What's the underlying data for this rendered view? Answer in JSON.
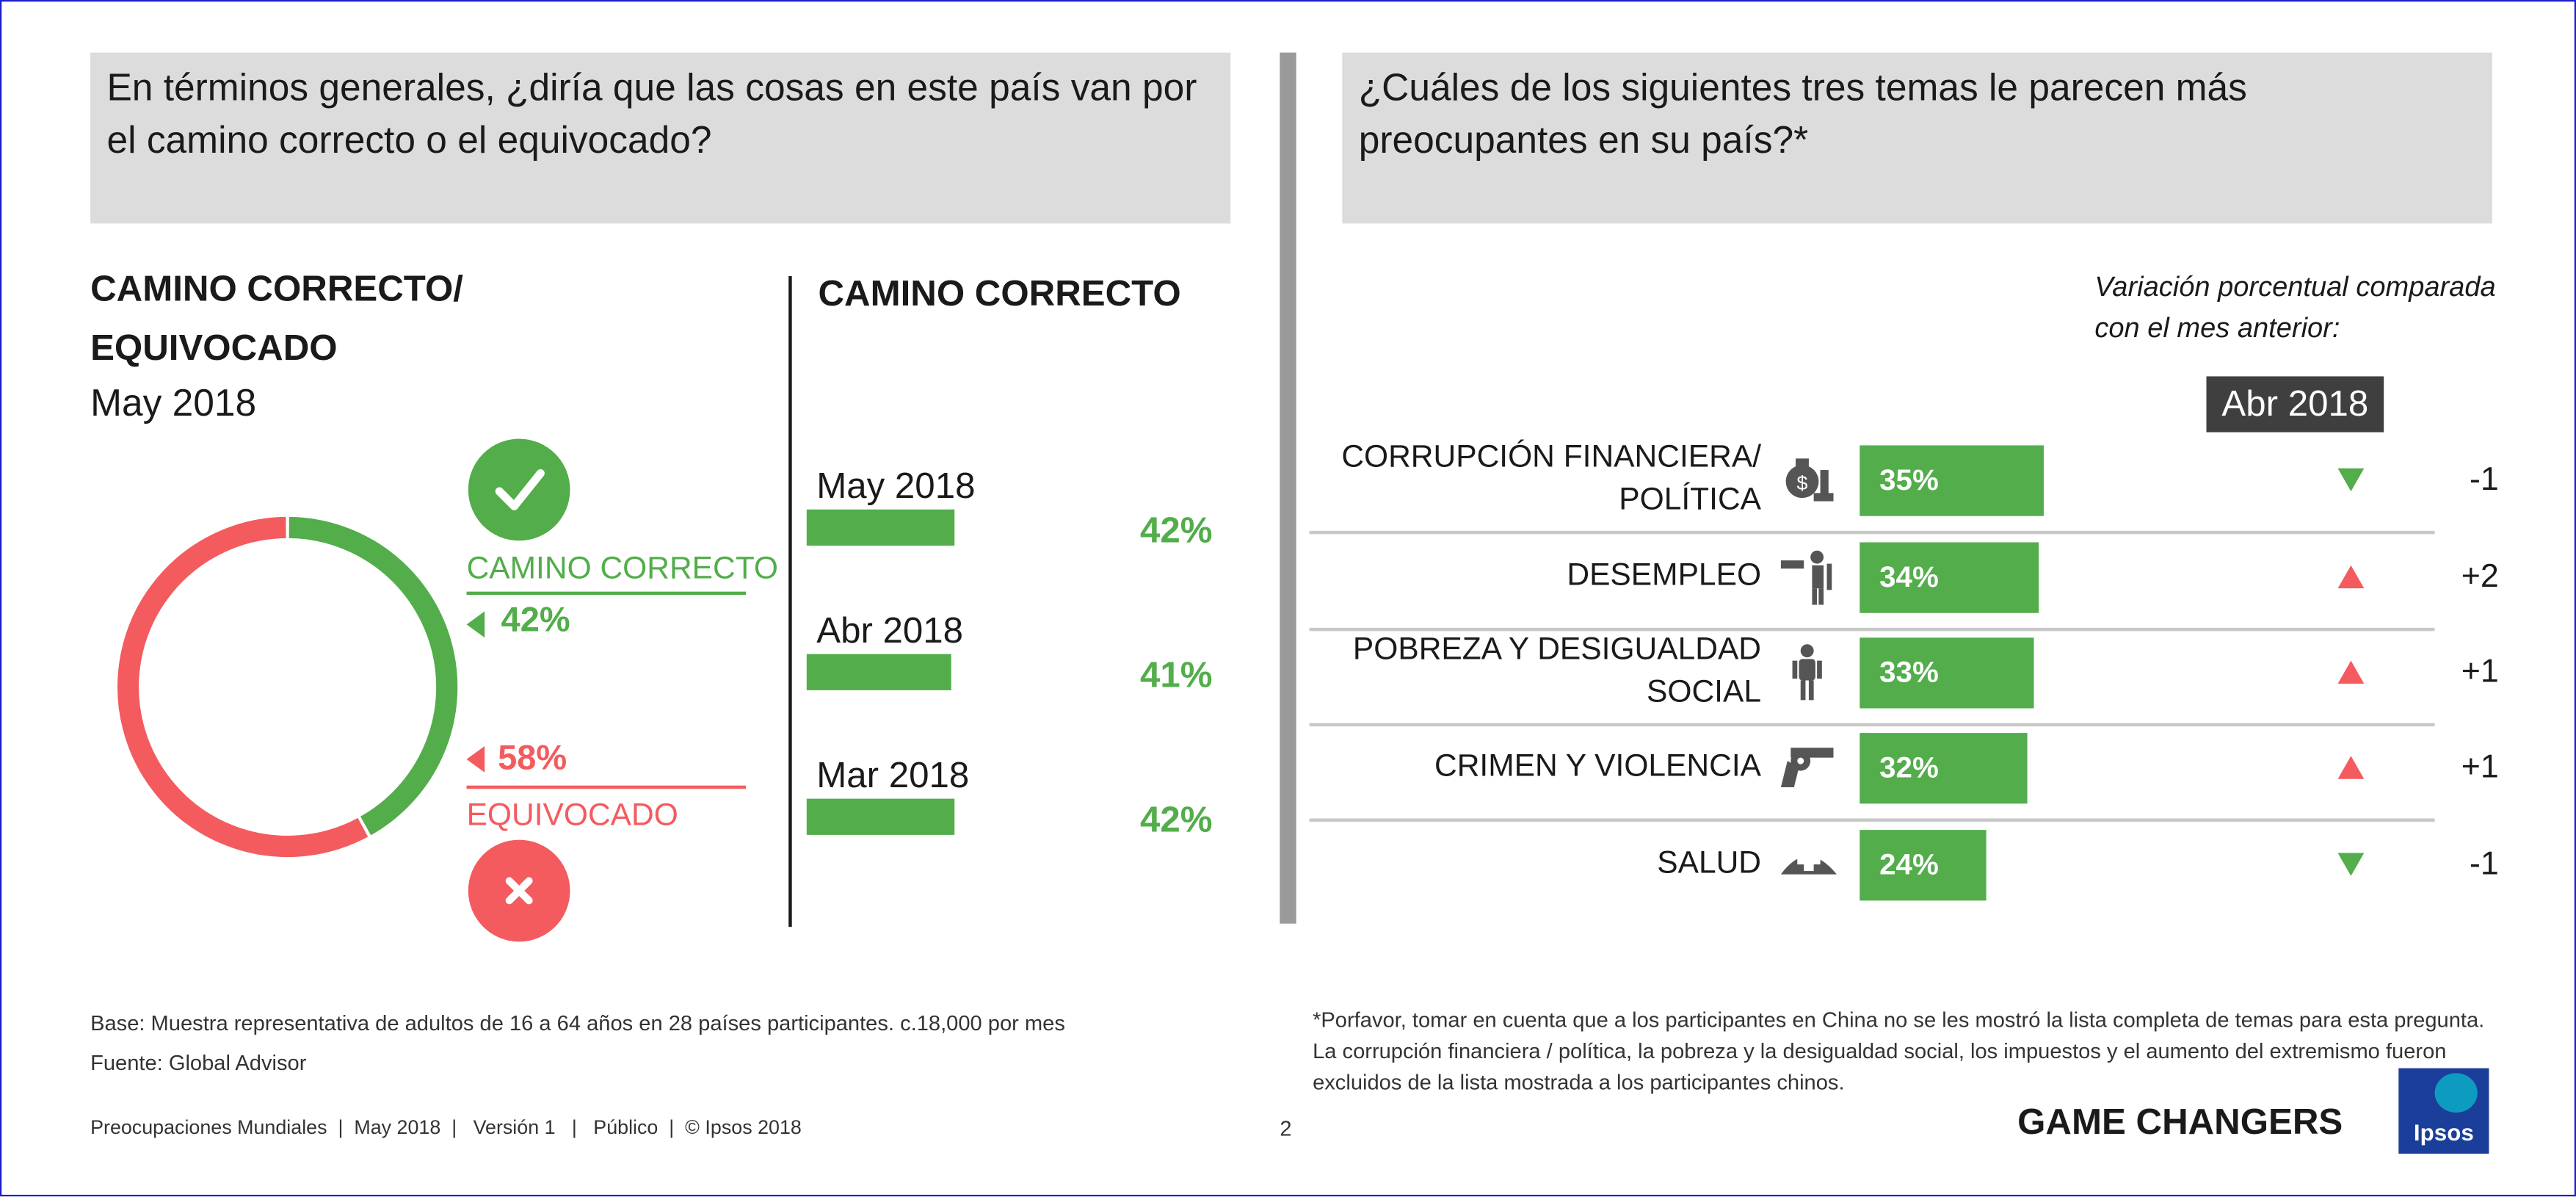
{
  "left": {
    "question": "En términos generales, ¿diría que las cosas en este país van por el camino correcto o el equivocado?",
    "section_title_1": "CAMINO CORRECTO/",
    "section_title_2": "EQUIVOCADO",
    "period": "May 2018",
    "correct_label": "CAMINO CORRECTO",
    "correct_pct": "42%",
    "wrong_label": "EQUIVOCADO",
    "wrong_pct": "58%",
    "trend_title": "CAMINO CORRECTO",
    "base": "Base: Muestra representativa de adultos de 16 a 64 años en 28 países participantes. c.18,000 por mes",
    "source": "Fuente: Global Advisor"
  },
  "right": {
    "question": "¿Cuáles de los siguientes tres temas le parecen más preocupantes en su país?*",
    "variation_1": "Variación porcentual comparada",
    "variation_2": "con el mes anterior:",
    "compare_label": "Abr 2018",
    "footnote_1": "*Porfavor, tomar en cuenta que a los participantes en China no se les mostró la lista completa de temas para esta pregunta.",
    "footnote_2": "La corrupción financiera / política, la pobreza y la desigualdad social, los impuestos y el aumento del extremismo fueron",
    "footnote_3": "excluidos de la lista mostrada a los participantes chinos."
  },
  "footer": {
    "left": "Preocupaciones Mundiales  |  May 2018  |   Versión 1   |   Público  |  © Ipsos 2018",
    "page": "2",
    "brand": "GAME CHANGERS",
    "logo": "Ipsos"
  },
  "chart_data": [
    {
      "type": "pie",
      "title": "CAMINO CORRECTO/ EQUIVOCADO",
      "subtitle": "May 2018",
      "labels": [
        "CAMINO CORRECTO",
        "EQUIVOCADO"
      ],
      "values": [
        42,
        58
      ],
      "colors": [
        "#52ad4a",
        "#f45b5e"
      ]
    },
    {
      "type": "bar",
      "title": "CAMINO CORRECTO",
      "categories": [
        "May 2018",
        "Abr 2018",
        "Mar 2018"
      ],
      "values": [
        42,
        41,
        42
      ],
      "value_labels": [
        "42%",
        "41%",
        "42%"
      ],
      "color": "#52ad4a"
    },
    {
      "type": "bar",
      "categories": [
        "CORRUPCIÓN FINANCIERA/ POLÍTICA",
        "DESEMPLEO",
        "POBREZA Y DESIGUALDAD SOCIAL",
        "CRIMEN Y VIOLENCIA",
        "SALUD"
      ],
      "category_lines": [
        [
          "CORRUPCIÓN FINANCIERA/",
          "POLÍTICA"
        ],
        [
          "DESEMPLEO"
        ],
        [
          "POBREZA Y DESIGUALDAD",
          "SOCIAL"
        ],
        [
          "CRIMEN Y VIOLENCIA"
        ],
        [
          "SALUD"
        ]
      ],
      "icons": [
        "money-bag-icon",
        "pointing-hand-icon",
        "person-icon",
        "revolver-icon",
        "nurse-cap-icon"
      ],
      "values": [
        35,
        34,
        33,
        32,
        24
      ],
      "value_labels": [
        "35%",
        "34%",
        "33%",
        "32%",
        "24%"
      ],
      "change_labels": [
        "-1",
        "+2",
        "+1",
        "+1",
        "-1"
      ],
      "change_direction": [
        "down",
        "up",
        "up",
        "up",
        "down"
      ],
      "color": "#52ad4a"
    }
  ]
}
